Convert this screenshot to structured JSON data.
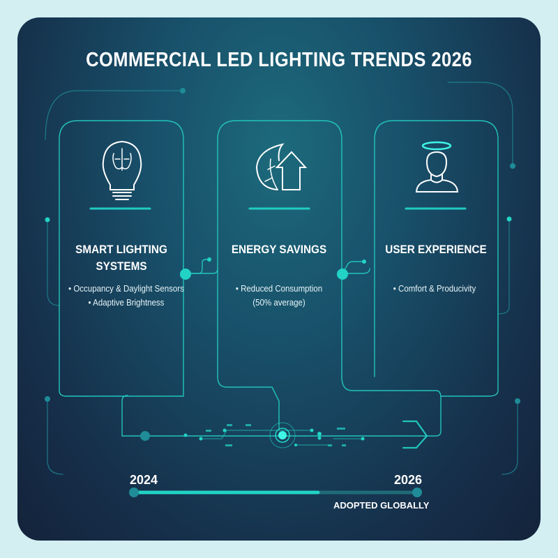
{
  "title": "COMMERCIAL LED LIGHTING TRENDS 2026",
  "cards": [
    {
      "icon": "brain-lightbulb-icon",
      "title_line1": "SMART LIGHTING",
      "title_line2": "SYSTEMS",
      "bullets": [
        "• Occupancy & Daylight Sensors",
        "• Adaptive Brightness"
      ]
    },
    {
      "icon": "leaf-arrow-up-icon",
      "title_line1": "ENERGY SAVINGS",
      "bullets": [
        "• Reduced Consumption",
        "(50% average)"
      ]
    },
    {
      "icon": "person-halo-icon",
      "title_line1": "USER EXPERIENCE",
      "bullets": [
        "• Comfort & Producivity"
      ]
    }
  ],
  "timeline": {
    "start_label": "2024",
    "end_label": "2026",
    "progress_percent": 65,
    "caption": "ADOPTED GLOBALLY"
  },
  "colors": {
    "accent": "#22d3c5",
    "background": "#d3eff2",
    "panel_top": "#1d6a7c",
    "panel_bottom": "#14233b"
  }
}
